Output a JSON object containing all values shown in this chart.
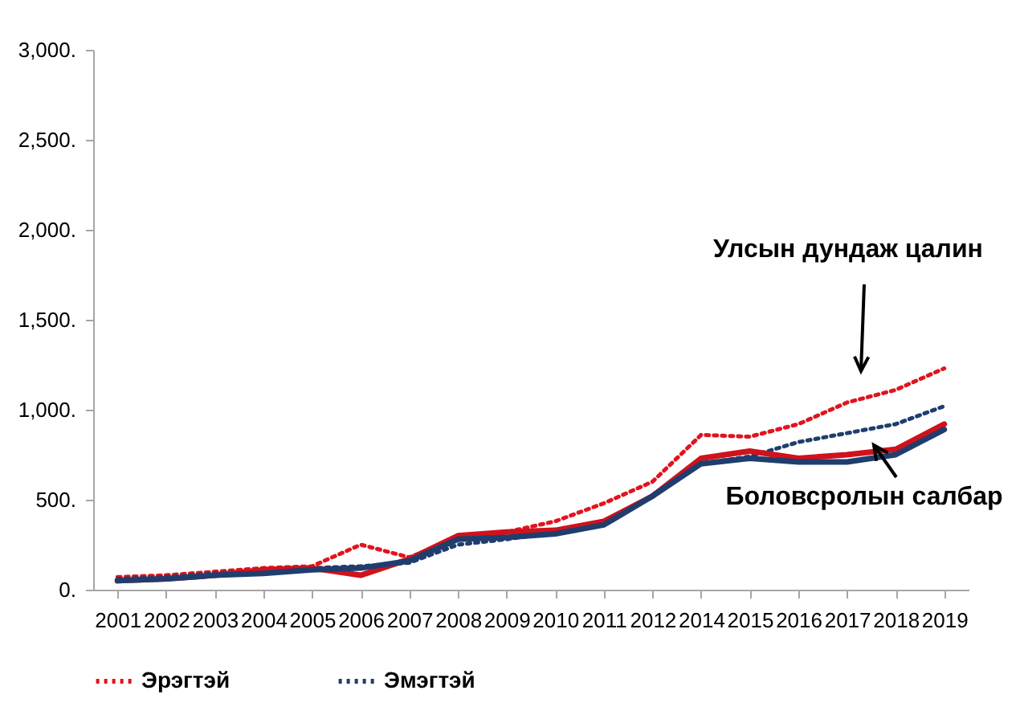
{
  "chart_data": {
    "type": "line",
    "categories": [
      "2001",
      "2002",
      "2003",
      "2004",
      "2005",
      "2006",
      "2007",
      "2008",
      "2009",
      "2010",
      "2011",
      "2012",
      "2014",
      "2015",
      "2016",
      "2017",
      "2018",
      "2019"
    ],
    "series": [
      {
        "name": "Эрэгтэй",
        "color": "#e0141e",
        "line_style": "dotted",
        "values": [
          70,
          80,
          100,
          120,
          130,
          250,
          180,
          280,
          320,
          380,
          480,
          600,
          860,
          850,
          920,
          1040,
          1110,
          1230
        ]
      },
      {
        "name": "Эмэгтэй",
        "color": "#1f3e6e",
        "line_style": "dotted",
        "values": [
          60,
          70,
          90,
          110,
          120,
          130,
          150,
          250,
          280,
          320,
          370,
          520,
          700,
          740,
          820,
          870,
          920,
          1020
        ]
      },
      {
        "color": "#d0121c",
        "line_style": "solid",
        "values": [
          50,
          60,
          80,
          110,
          120,
          80,
          170,
          300,
          320,
          330,
          380,
          520,
          730,
          770,
          730,
          750,
          780,
          920
        ]
      },
      {
        "color": "#1f3e6e",
        "line_style": "solid",
        "values": [
          50,
          60,
          80,
          90,
          110,
          120,
          160,
          280,
          290,
          310,
          360,
          520,
          700,
          730,
          710,
          710,
          750,
          890
        ]
      }
    ],
    "ylim": [
      0,
      3000
    ],
    "yticks": [
      {
        "value": 0,
        "label": "0."
      },
      {
        "value": 500,
        "label": "500."
      },
      {
        "value": 1000,
        "label": "1,000."
      },
      {
        "value": 1500,
        "label": "1,500."
      },
      {
        "value": 2000,
        "label": "2,000."
      },
      {
        "value": 2500,
        "label": "2,500."
      },
      {
        "value": 3000,
        "label": "3,000."
      }
    ],
    "grid": false,
    "legend": "bottom",
    "marker": "none",
    "annotations": [
      "Улсын дундаж цалин",
      "Боловсролын салбар"
    ]
  }
}
